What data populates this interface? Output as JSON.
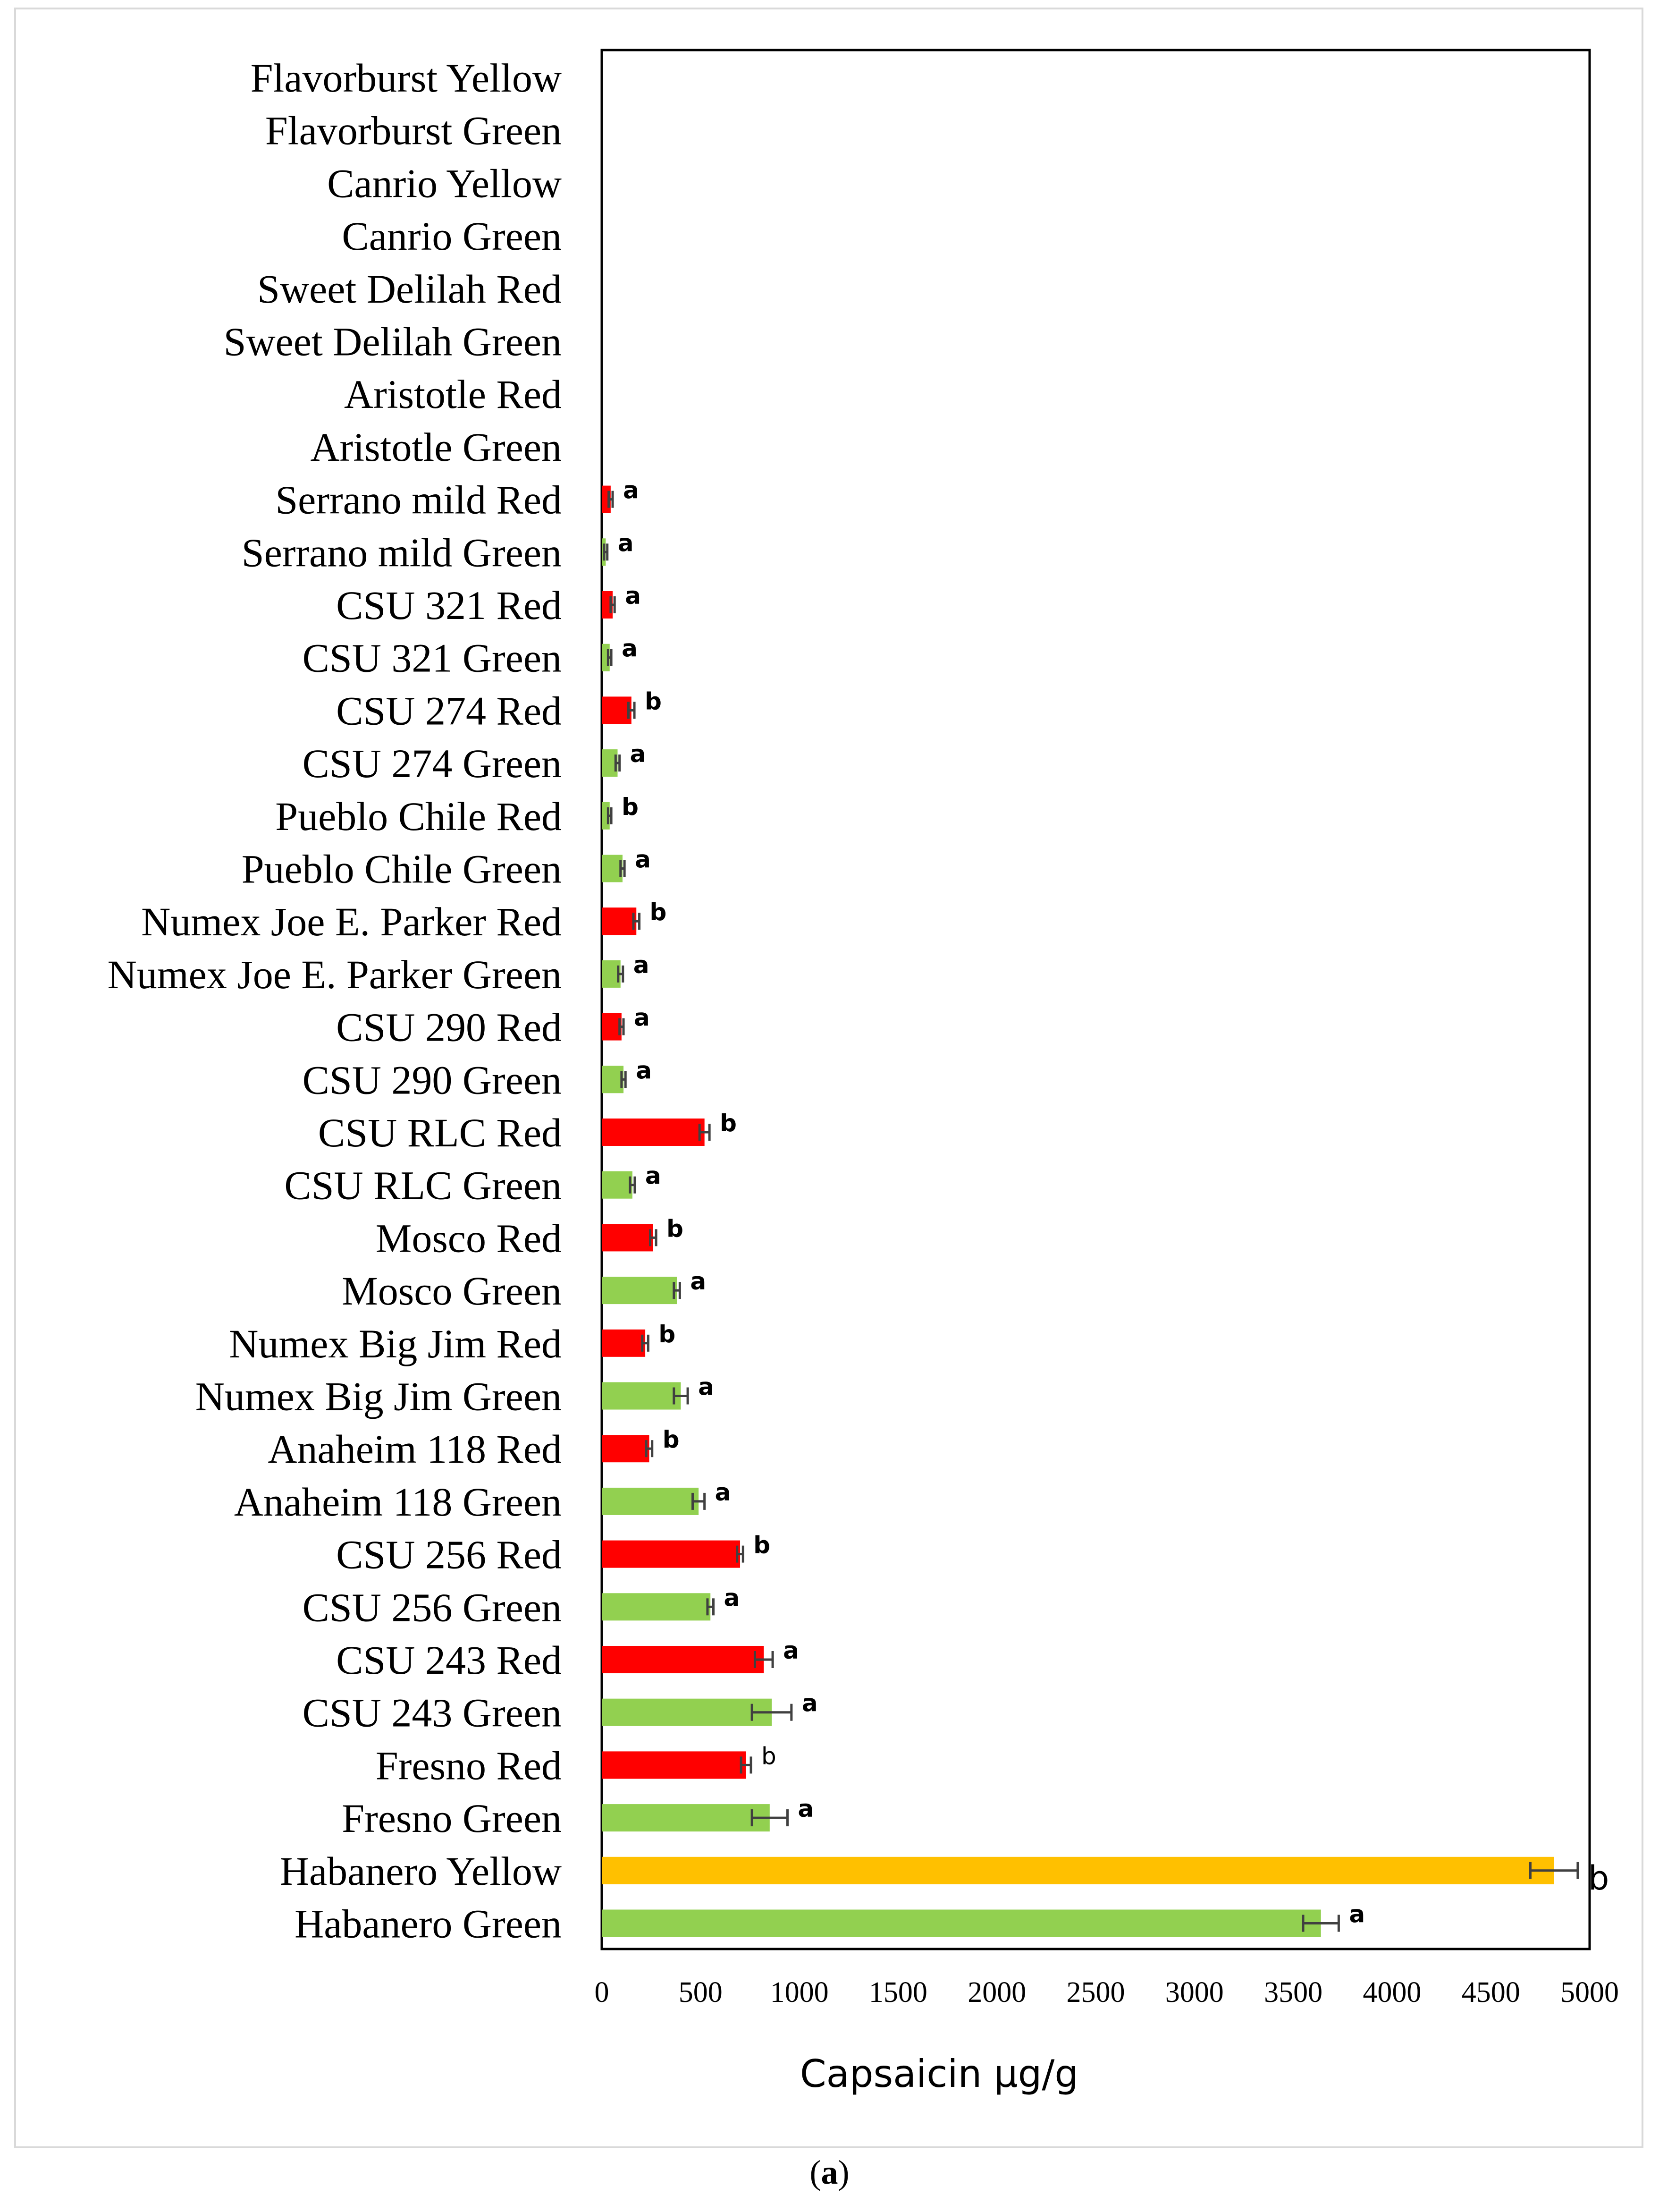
{
  "chart_data": {
    "type": "bar",
    "orientation": "horizontal",
    "xlabel": "Capsaicin µg/g",
    "xlim": [
      0,
      5000
    ],
    "xticks": [
      0,
      500,
      1000,
      1500,
      2000,
      2500,
      3000,
      3500,
      4000,
      4500,
      5000
    ],
    "grid": false,
    "legend": "none",
    "colors": {
      "red": "#ff0000",
      "green": "#92d050",
      "yellow": "#ffc000",
      "error": "#404040"
    },
    "categories": [
      "Flavorburst Yellow",
      "Flavorburst Green",
      "Canrio Yellow",
      "Canrio Green",
      "Sweet Delilah Red",
      "Sweet Delilah Green",
      "Aristotle Red",
      "Aristotle Green",
      "Serrano mild Red",
      "Serrano mild Green",
      "CSU 321 Red",
      "CSU 321 Green",
      "CSU 274 Red",
      "CSU 274 Green",
      "Pueblo Chile Red",
      "Pueblo Chile Green",
      "Numex Joe E. Parker Red",
      "Numex Joe E. Parker Green",
      "CSU 290 Red",
      "CSU 290 Green",
      "CSU RLC Red",
      "CSU RLC Green",
      "Mosco Red",
      "Mosco Green",
      "Numex Big Jim Red",
      "Numex Big Jim Green",
      "Anaheim 118 Red",
      "Anaheim 118 Green",
      "CSU 256 Red",
      "CSU 256 Green",
      "CSU 243 Red",
      "CSU 243 Green",
      "Fresno Red",
      "Fresno Green",
      "Habanero Yellow",
      "Habanero Green"
    ],
    "values": [
      0,
      0,
      0,
      0,
      0,
      0,
      0,
      0,
      45,
      20,
      55,
      40,
      150,
      80,
      40,
      105,
      175,
      95,
      100,
      110,
      520,
      155,
      260,
      380,
      220,
      400,
      240,
      490,
      700,
      550,
      820,
      860,
      730,
      850,
      4820,
      3640
    ],
    "errors": [
      0,
      0,
      0,
      0,
      0,
      0,
      0,
      0,
      10,
      8,
      10,
      8,
      15,
      10,
      8,
      10,
      15,
      12,
      10,
      10,
      25,
      12,
      15,
      15,
      15,
      35,
      15,
      30,
      15,
      15,
      45,
      100,
      25,
      90,
      120,
      90
    ],
    "bar_colors": [
      "",
      "",
      "",
      "",
      "",
      "",
      "",
      "",
      "red",
      "green",
      "red",
      "green",
      "red",
      "green",
      "green",
      "green",
      "red",
      "green",
      "red",
      "green",
      "red",
      "green",
      "red",
      "green",
      "red",
      "green",
      "red",
      "green",
      "red",
      "green",
      "red",
      "green",
      "red",
      "green",
      "yellow",
      "green"
    ],
    "significance": [
      "",
      "",
      "",
      "",
      "",
      "",
      "",
      "",
      "a",
      "a",
      "a",
      "a",
      "b",
      "a",
      "b",
      "a",
      "b",
      "a",
      "a",
      "a",
      "b",
      "a",
      "b",
      "a",
      "b",
      "a",
      "b",
      "a",
      "b",
      "a",
      "a",
      "a",
      "b",
      "a",
      "b",
      "a"
    ]
  },
  "caption": {
    "open": "(",
    "letter": "a",
    "close": ")"
  }
}
